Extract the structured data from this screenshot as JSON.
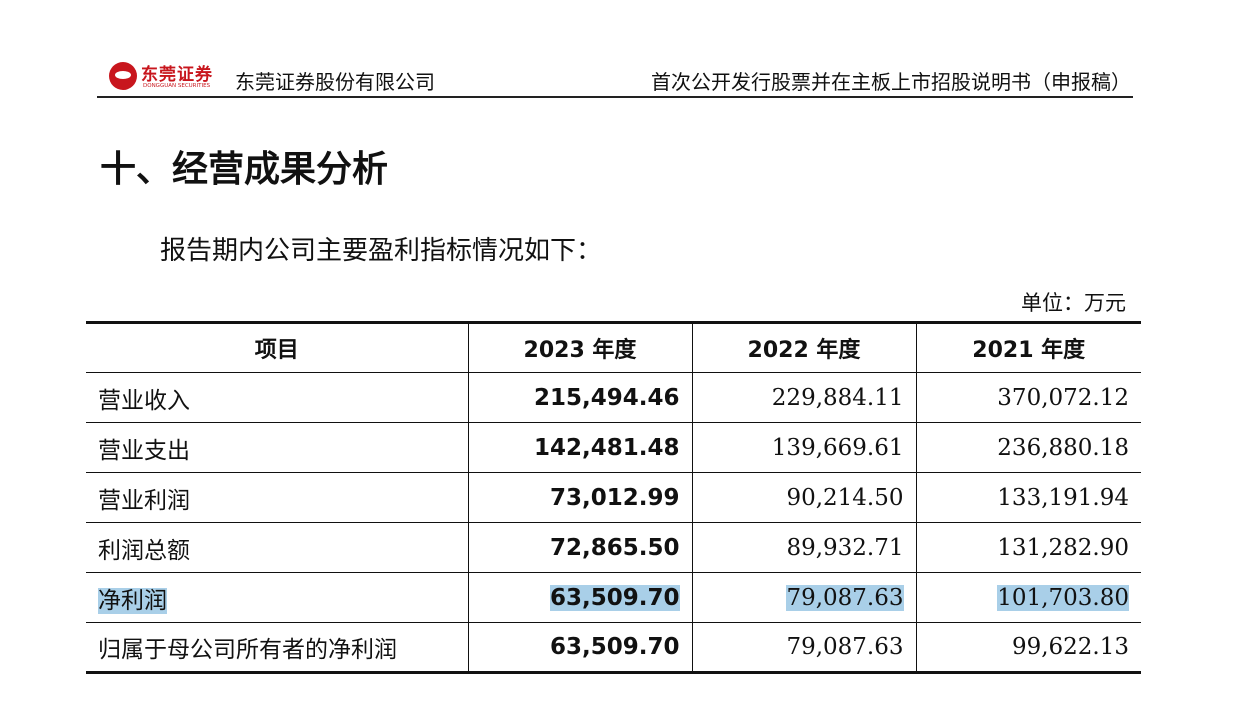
{
  "header": {
    "logo_cn": "东莞证券",
    "logo_en": "DONGGUAN SECURITIES",
    "company": "东莞证券股份有限公司",
    "doc_title": "首次公开发行股票并在主板上市招股说明书（申报稿）"
  },
  "section_title": "十、经营成果分析",
  "intro": "报告期内公司主要盈利指标情况如下：",
  "unit": "单位：万元",
  "table": {
    "headers": [
      "项目",
      "2023 年度",
      "2022 年度",
      "2021 年度"
    ],
    "rows": [
      {
        "item": "营业收入",
        "y2023": "215,494.46",
        "y2022": "229,884.11",
        "y2021": "370,072.12"
      },
      {
        "item": "营业支出",
        "y2023": "142,481.48",
        "y2022": "139,669.61",
        "y2021": "236,880.18"
      },
      {
        "item": "营业利润",
        "y2023": "73,012.99",
        "y2022": "90,214.50",
        "y2021": "133,191.94"
      },
      {
        "item": "利润总额",
        "y2023": "72,865.50",
        "y2022": "89,932.71",
        "y2021": "131,282.90"
      },
      {
        "item": "净利润",
        "y2023": "63,509.70",
        "y2022": "79,087.63",
        "y2021": "101,703.80"
      },
      {
        "item": "归属于母公司所有者的净利润",
        "y2023": "63,509.70",
        "y2022": "79,087.63",
        "y2021": "99,622.13"
      }
    ]
  },
  "colors": {
    "brand_red": "#c8161d",
    "selection_highlight": "#a9cfe8"
  }
}
